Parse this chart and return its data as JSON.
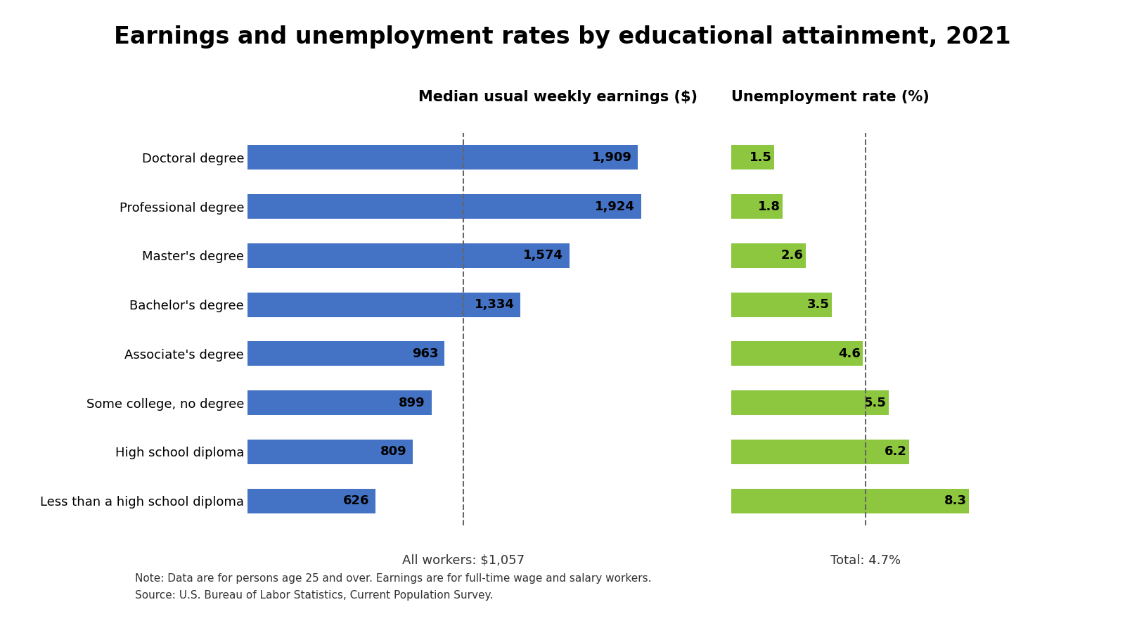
{
  "title": "Earnings and unemployment rates by educational attainment, 2021",
  "categories": [
    "Doctoral degree",
    "Professional degree",
    "Master's degree",
    "Bachelor's degree",
    "Associate's degree",
    "Some college, no degree",
    "High school diploma",
    "Less than a high school diploma"
  ],
  "earnings": [
    1909,
    1924,
    1574,
    1334,
    963,
    899,
    809,
    626
  ],
  "unemployment": [
    1.5,
    1.8,
    2.6,
    3.5,
    4.6,
    5.5,
    6.2,
    8.3
  ],
  "earnings_color": "#4472C4",
  "unemployment_color": "#8DC63F",
  "earnings_label": "Median usual weekly earnings ($)",
  "unemployment_label": "Unemployment rate (%)",
  "earnings_refline": 1057,
  "earnings_refline_label": "All workers: $1,057",
  "unemployment_refline": 4.7,
  "unemployment_refline_label": "Total: 4.7%",
  "note_line1": "Note: Data are for persons age 25 and over. Earnings are for full-time wage and salary workers.",
  "note_line2": "Source: U.S. Bureau of Labor Statistics, Current Population Survey.",
  "background_color": "#FFFFFF",
  "title_fontsize": 24,
  "header_fontsize": 15,
  "bar_label_fontsize": 13,
  "yticklabel_fontsize": 13,
  "note_fontsize": 11,
  "refline_label_fontsize": 13
}
